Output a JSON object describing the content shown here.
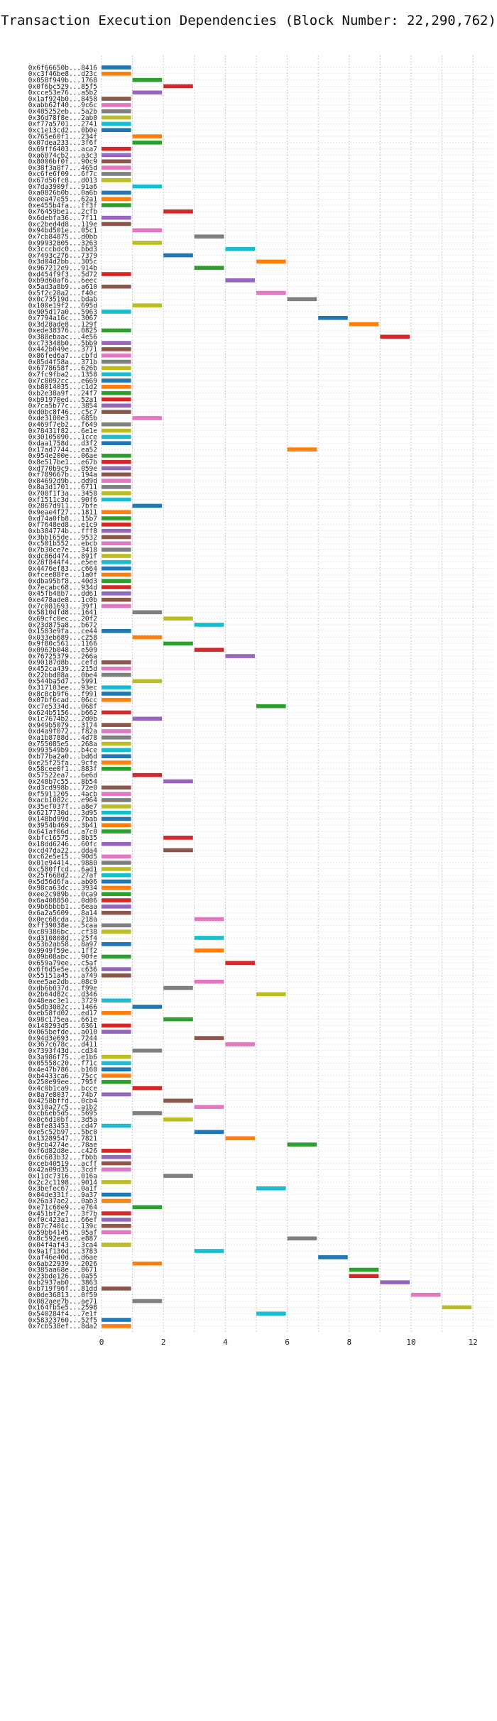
{
  "chart_data": {
    "type": "bar",
    "orientation": "horizontal",
    "title": "Transaction Execution Dependencies (Block Number: 22,290,762)",
    "xlabel": "",
    "ylabel": "",
    "xlim": [
      0,
      12.5
    ],
    "xticks": [
      0,
      2,
      4,
      6,
      8,
      10,
      12
    ],
    "grid": true,
    "legend": "none",
    "palette": [
      "#1f77b4",
      "#ff7f0e",
      "#2ca02c",
      "#d62728",
      "#9467bd",
      "#8c564b",
      "#e377c2",
      "#7f7f7f",
      "#bcbd22",
      "#17becf"
    ],
    "bar_width": 1,
    "transactions": [
      {
        "tx": "0x6f66650b...8416",
        "start": 0
      },
      {
        "tx": "0xc3f46be8...d23c",
        "start": 0
      },
      {
        "tx": "0x058f949b...1768",
        "start": 1
      },
      {
        "tx": "0x0f6bc529...85f5",
        "start": 2
      },
      {
        "tx": "0xcce53e76...a5b2",
        "start": 1
      },
      {
        "tx": "0x1af924b0...8458",
        "start": 0
      },
      {
        "tx": "0xabb62f40...9c6c",
        "start": 0
      },
      {
        "tx": "0x485252eb...5a2b",
        "start": 0
      },
      {
        "tx": "0x36d78f8e...2ab0",
        "start": 0
      },
      {
        "tx": "0xf77a5701...2741",
        "start": 0
      },
      {
        "tx": "0xc1e13cd2...0b0e",
        "start": 0
      },
      {
        "tx": "0x765e60f1...234f",
        "start": 1
      },
      {
        "tx": "0x07dea233...3f6f",
        "start": 1
      },
      {
        "tx": "0x69ff6403...aca7",
        "start": 0
      },
      {
        "tx": "0xa6874cb2...a3c3",
        "start": 0
      },
      {
        "tx": "0x8006bf0f...90c9",
        "start": 0
      },
      {
        "tx": "0x38f3a8f7...465d",
        "start": 0
      },
      {
        "tx": "0xc6fe6f09...6f7c",
        "start": 0
      },
      {
        "tx": "0x67d56fc8...d013",
        "start": 0
      },
      {
        "tx": "0x7da3909f...91a6",
        "start": 1
      },
      {
        "tx": "0xa0826b0b...0a6b",
        "start": 0
      },
      {
        "tx": "0xeea47e55...62a1",
        "start": 0
      },
      {
        "tx": "0xe455b4fa...ff3f",
        "start": 0
      },
      {
        "tx": "0x76459be1...2cfb",
        "start": 2
      },
      {
        "tx": "0x6debfa36...7f11",
        "start": 0
      },
      {
        "tx": "0xc2bed4d8...119e",
        "start": 0
      },
      {
        "tx": "0x94bd501e...05c1",
        "start": 1
      },
      {
        "tx": "0x7cb84875...d0bb",
        "start": 3
      },
      {
        "tx": "0x99932805...3263",
        "start": 1
      },
      {
        "tx": "0x3cccbdc0...bbd3",
        "start": 4
      },
      {
        "tx": "0x7493c276...7379",
        "start": 2
      },
      {
        "tx": "0x3d04d2bb...305c",
        "start": 5
      },
      {
        "tx": "0x967212e9...914b",
        "start": 3
      },
      {
        "tx": "0xd454f9f3...5d72",
        "start": 0
      },
      {
        "tx": "0xb9d60af6...6eec",
        "start": 4
      },
      {
        "tx": "0x5ad3a8b9...a610",
        "start": 0
      },
      {
        "tx": "0x5f2c28a2...f40c",
        "start": 5
      },
      {
        "tx": "0x0c73519d...bdab",
        "start": 6
      },
      {
        "tx": "0x100e19f2...695d",
        "start": 1
      },
      {
        "tx": "0x905d17a0...5963",
        "start": 0
      },
      {
        "tx": "0x7794a16c...3067",
        "start": 7
      },
      {
        "tx": "0x3d28ade8...129f",
        "start": 8
      },
      {
        "tx": "0xede38376...0825",
        "start": 0
      },
      {
        "tx": "0x388ebaac...4e56",
        "start": 9
      },
      {
        "tx": "0xc73348b0...5bb9",
        "start": 0
      },
      {
        "tx": "0x442b049e...3771",
        "start": 0
      },
      {
        "tx": "0x86fed6a7...cbfd",
        "start": 0
      },
      {
        "tx": "0x85d4f58a...371b",
        "start": 0
      },
      {
        "tx": "0x6778658f...626b",
        "start": 0
      },
      {
        "tx": "0x7fc9fba2...1358",
        "start": 0
      },
      {
        "tx": "0x7c8092cc...e669",
        "start": 0
      },
      {
        "tx": "0xb8014035...c1d2",
        "start": 0
      },
      {
        "tx": "0xb2e38a9f...24f7",
        "start": 0
      },
      {
        "tx": "0xb91970ed...52a1",
        "start": 0
      },
      {
        "tx": "0x7ca5b77c...3854",
        "start": 0
      },
      {
        "tx": "0xd0bc8f46...c5c7",
        "start": 0
      },
      {
        "tx": "0xde3100e3...685b",
        "start": 1
      },
      {
        "tx": "0x469f7eb2...f649",
        "start": 0
      },
      {
        "tx": "0x78431f82...6e1e",
        "start": 0
      },
      {
        "tx": "0x30105090...1cce",
        "start": 0
      },
      {
        "tx": "0xdaa1758d...d3f2",
        "start": 0
      },
      {
        "tx": "0x17ad7744...ea52",
        "start": 6
      },
      {
        "tx": "0x954e200e...06ae",
        "start": 0
      },
      {
        "tx": "0x8e517be1...e67b",
        "start": 0
      },
      {
        "tx": "0xd770b9c9...059e",
        "start": 0
      },
      {
        "tx": "0xf789667b...194a",
        "start": 0
      },
      {
        "tx": "0x84692d9b...dd9d",
        "start": 0
      },
      {
        "tx": "0x8a3d1701...6711",
        "start": 0
      },
      {
        "tx": "0x708f1f3a...3458",
        "start": 0
      },
      {
        "tx": "0xf1511c3d...90f6",
        "start": 0
      },
      {
        "tx": "0x2867d911...7bfe",
        "start": 1
      },
      {
        "tx": "0x9eae4f27...1811",
        "start": 0
      },
      {
        "tx": "0xd74a0fb8...15b7",
        "start": 0
      },
      {
        "tx": "0xf7648ed8...e1c9",
        "start": 0
      },
      {
        "tx": "0xb384774b...fff8",
        "start": 0
      },
      {
        "tx": "0x3bb165de...9532",
        "start": 0
      },
      {
        "tx": "0xc501b552...ebcb",
        "start": 0
      },
      {
        "tx": "0x7b30ce7e...3418",
        "start": 0
      },
      {
        "tx": "0xdc86d474...891f",
        "start": 0
      },
      {
        "tx": "0x28f844f4...e5ee",
        "start": 0
      },
      {
        "tx": "0x4476ef83...c664",
        "start": 0
      },
      {
        "tx": "0xfcee88fe...1a0f",
        "start": 0
      },
      {
        "tx": "0xdba95bf8...40d3",
        "start": 0
      },
      {
        "tx": "0x7ecabc68...934d",
        "start": 0
      },
      {
        "tx": "0x45fb48b7...dd61",
        "start": 0
      },
      {
        "tx": "0xe478ade8...1c0b",
        "start": 0
      },
      {
        "tx": "0x7c081693...39f1",
        "start": 0
      },
      {
        "tx": "0x5810dfd8...1641",
        "start": 1
      },
      {
        "tx": "0x69cfc0ec...20f2",
        "start": 2
      },
      {
        "tx": "0x23d875a8...b672",
        "start": 3
      },
      {
        "tx": "0x1503e9fa...ce44",
        "start": 0
      },
      {
        "tx": "0x033eb689...c258",
        "start": 1
      },
      {
        "tx": "0x9f80c561...1166",
        "start": 2
      },
      {
        "tx": "0x0962b048...e509",
        "start": 3
      },
      {
        "tx": "0x76725379...266a",
        "start": 4
      },
      {
        "tx": "0x90187d8b...cefd",
        "start": 0
      },
      {
        "tx": "0x452ca439...215d",
        "start": 0
      },
      {
        "tx": "0x22bbd88a...0be4",
        "start": 0
      },
      {
        "tx": "0x544ba5d7...5991",
        "start": 1
      },
      {
        "tx": "0x317103ee...93ec",
        "start": 0
      },
      {
        "tx": "0x8c8cb9f6...f991",
        "start": 0
      },
      {
        "tx": "0x07bf6cad...06cc",
        "start": 0
      },
      {
        "tx": "0xc7e5334d...068f",
        "start": 5
      },
      {
        "tx": "0x624b5156...b662",
        "start": 0
      },
      {
        "tx": "0x1c7674b2...2d0b",
        "start": 1
      },
      {
        "tx": "0x949b5079...3174",
        "start": 0
      },
      {
        "tx": "0xd4a9f072...f82a",
        "start": 0
      },
      {
        "tx": "0xa1b8788d...4d78",
        "start": 0
      },
      {
        "tx": "0x755085e5...268a",
        "start": 0
      },
      {
        "tx": "0x993549b9...b4ce",
        "start": 0
      },
      {
        "tx": "0xb77ba2a0...bd6d",
        "start": 0
      },
      {
        "tx": "0xe25f25fa...9cfe",
        "start": 0
      },
      {
        "tx": "0x58cee0f1...883f",
        "start": 0
      },
      {
        "tx": "0x57522ea7...6e6d",
        "start": 1
      },
      {
        "tx": "0x248b7c55...8b54",
        "start": 2
      },
      {
        "tx": "0xd3cd998b...72e0",
        "start": 0
      },
      {
        "tx": "0xf5911205...4acb",
        "start": 0
      },
      {
        "tx": "0xacb1082c...e964",
        "start": 0
      },
      {
        "tx": "0x35ef037f...a8e7",
        "start": 0
      },
      {
        "tx": "0x6217730d...3d95",
        "start": 0
      },
      {
        "tx": "0x148bd99d...7bab",
        "start": 0
      },
      {
        "tx": "0x3954b469...3b41",
        "start": 0
      },
      {
        "tx": "0x641af06d...a7c0",
        "start": 0
      },
      {
        "tx": "0xbfc16575...8b35",
        "start": 2
      },
      {
        "tx": "0x18dd6246...60fc",
        "start": 0
      },
      {
        "tx": "0xcd47da22...dda4",
        "start": 2
      },
      {
        "tx": "0xc62e5e15...90d5",
        "start": 0
      },
      {
        "tx": "0x01e94414...9880",
        "start": 0
      },
      {
        "tx": "0xc580ffcd...6ad1",
        "start": 0
      },
      {
        "tx": "0x25f668d2...27af",
        "start": 0
      },
      {
        "tx": "0x5d56d6fa...ab06",
        "start": 0
      },
      {
        "tx": "0x98ca63dc...3934",
        "start": 0
      },
      {
        "tx": "0xee2c989b...0ca9",
        "start": 0
      },
      {
        "tx": "0x6a408850...0d06",
        "start": 0
      },
      {
        "tx": "0x9b6bbbb1...6eaa",
        "start": 0
      },
      {
        "tx": "0x6a2a5609...8a14",
        "start": 0
      },
      {
        "tx": "0x0ec68cda...218a",
        "start": 3
      },
      {
        "tx": "0xff39038e...5caa",
        "start": 0
      },
      {
        "tx": "0xc89386bc...cf38",
        "start": 0
      },
      {
        "tx": "0xd310808d...25f4",
        "start": 3
      },
      {
        "tx": "0x53b2ab58...8a97",
        "start": 0
      },
      {
        "tx": "0x9949f59e...1ff2",
        "start": 3
      },
      {
        "tx": "0x09b08abc...90fe",
        "start": 0
      },
      {
        "tx": "0x659a79ee...c5af",
        "start": 4
      },
      {
        "tx": "0x6f6d5e5e...c636",
        "start": 0
      },
      {
        "tx": "0x55151a45...a749",
        "start": 0
      },
      {
        "tx": "0xee5ae2db...08c9",
        "start": 3
      },
      {
        "tx": "0xdb6b037d...f99e",
        "start": 2
      },
      {
        "tx": "0x2b64d82c...d346",
        "start": 5
      },
      {
        "tx": "0x48eac3e1...3729",
        "start": 0
      },
      {
        "tx": "0x5db3082c...1466",
        "start": 1
      },
      {
        "tx": "0xeb58fd02...ed17",
        "start": 0
      },
      {
        "tx": "0x98c175ea...661e",
        "start": 2
      },
      {
        "tx": "0x148293d5...6361",
        "start": 0
      },
      {
        "tx": "0x065befde...a010",
        "start": 0
      },
      {
        "tx": "0x94d3e693...7244",
        "start": 3
      },
      {
        "tx": "0x367c678c...d411",
        "start": 4
      },
      {
        "tx": "0x7393f43d...cd34",
        "start": 1
      },
      {
        "tx": "0x3a986f75...e1b6",
        "start": 0
      },
      {
        "tx": "0x05558c20...f71c",
        "start": 0
      },
      {
        "tx": "0x4e47b786...b160",
        "start": 0
      },
      {
        "tx": "0xb4433ca6...75cc",
        "start": 0
      },
      {
        "tx": "0x250e99ee...795f",
        "start": 0
      },
      {
        "tx": "0x4c0b1ca9...bcce",
        "start": 1
      },
      {
        "tx": "0x8a7e8037...74b7",
        "start": 0
      },
      {
        "tx": "0x4258bffd...0cb4",
        "start": 2
      },
      {
        "tx": "0x310a27c5...a1b2",
        "start": 3
      },
      {
        "tx": "0xcb6eb5d5...5695",
        "start": 1
      },
      {
        "tx": "0x0c6d10bf...3d5a",
        "start": 2
      },
      {
        "tx": "0x8fe83453...cd47",
        "start": 0
      },
      {
        "tx": "0xe5c52b97...5bc0",
        "start": 3
      },
      {
        "tx": "0x13289547...7821",
        "start": 4
      },
      {
        "tx": "0x9cb4274e...78ae",
        "start": 6
      },
      {
        "tx": "0xf6d82d8e...c426",
        "start": 0
      },
      {
        "tx": "0x6c683b32...fbbb",
        "start": 0
      },
      {
        "tx": "0xceb40519...acff",
        "start": 0
      },
      {
        "tx": "0x42a09d35...3cdf",
        "start": 0
      },
      {
        "tx": "0x11dc7316...016a",
        "start": 2
      },
      {
        "tx": "0x2c2c1198...9014",
        "start": 0
      },
      {
        "tx": "0x3befec67...0a1f",
        "start": 5
      },
      {
        "tx": "0x04de331f...9a37",
        "start": 0
      },
      {
        "tx": "0x26a37ae2...0ab3",
        "start": 0
      },
      {
        "tx": "0xe71c60e9...e764",
        "start": 1
      },
      {
        "tx": "0x451bf2e7...3f7b",
        "start": 0
      },
      {
        "tx": "0xf0c423a1...66ef",
        "start": 0
      },
      {
        "tx": "0x87c7401c...139c",
        "start": 0
      },
      {
        "tx": "0x59bb4145...95af",
        "start": 0
      },
      {
        "tx": "0x8c592ee6...e887",
        "start": 6
      },
      {
        "tx": "0x04f4af43...3ca4",
        "start": 0
      },
      {
        "tx": "0x9a1f130d...3783",
        "start": 3
      },
      {
        "tx": "0xaf46e40d...d6ae",
        "start": 7
      },
      {
        "tx": "0x6ab22939...2026",
        "start": 1
      },
      {
        "tx": "0x385aa68e...8671",
        "start": 8
      },
      {
        "tx": "0x23bde126...0a55",
        "start": 8
      },
      {
        "tx": "0xb2937ab0...3863",
        "start": 9
      },
      {
        "tx": "0xb719f96f...81dd",
        "start": 0
      },
      {
        "tx": "0x0de36813...0f59",
        "start": 10
      },
      {
        "tx": "0x082aee7b...ae71",
        "start": 1
      },
      {
        "tx": "0x164fb5e5...2598",
        "start": 11
      },
      {
        "tx": "0x540284f4...7e1f",
        "start": 5
      },
      {
        "tx": "0x58323760...52f5",
        "start": 0
      },
      {
        "tx": "0x7cb538ef...8da2",
        "start": 0
      }
    ]
  }
}
